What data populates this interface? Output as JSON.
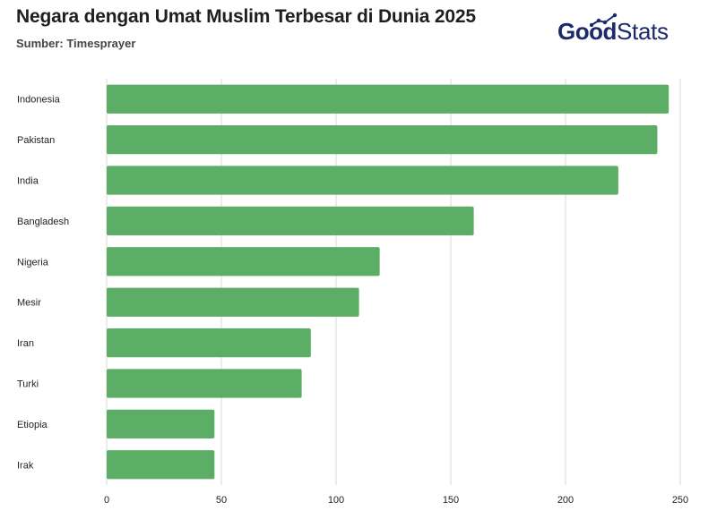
{
  "header": {
    "title": "Negara dengan Umat Muslim Terbesar di Dunia 2025",
    "subtitle": "Sumber: Timesprayer"
  },
  "logo": {
    "part1": "Good",
    "part2": "Stats"
  },
  "colors": {
    "bar": "#5cad66",
    "logo": "#1b2a6b"
  },
  "chart_data": {
    "type": "bar",
    "orientation": "horizontal",
    "title": "Negara dengan Umat Muslim Terbesar di Dunia 2025",
    "xlabel": "",
    "ylabel": "",
    "categories": [
      "Indonesia",
      "Pakistan",
      "India",
      "Bangladesh",
      "Nigeria",
      "Mesir",
      "Iran",
      "Turki",
      "Etiopia",
      "Irak"
    ],
    "values": [
      245,
      240,
      223,
      160,
      119,
      110,
      89,
      85,
      47,
      47
    ],
    "xlim": [
      0,
      250
    ],
    "xticks": [
      0,
      50,
      100,
      150,
      200,
      250
    ],
    "grid": true,
    "legend": "none"
  }
}
